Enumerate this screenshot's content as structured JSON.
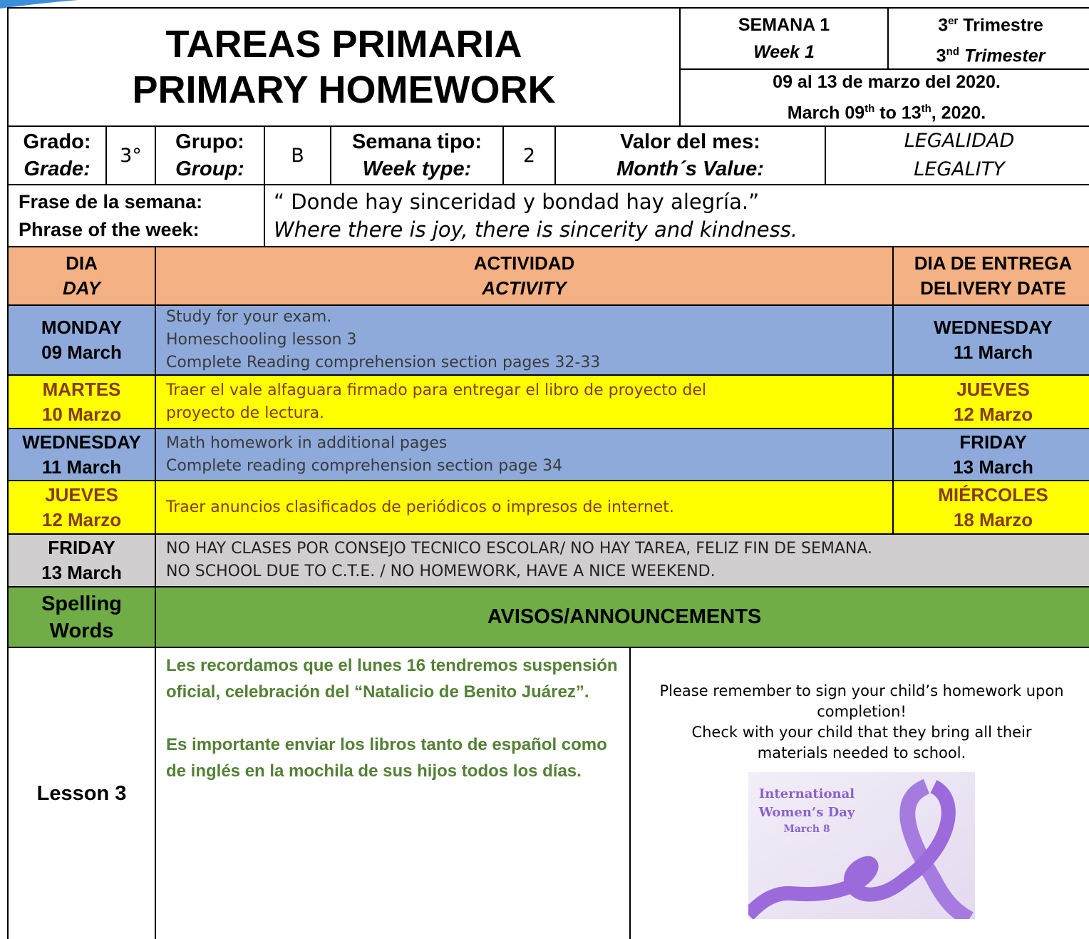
{
  "header": {
    "title_es": "TAREAS PRIMARIA",
    "title_en": "PRIMARY HOMEWORK",
    "week_es": "SEMANA 1",
    "week_en": "Week  1",
    "trimester_es": {
      "number": "3",
      "suffix": "er",
      "text": "Trimestre"
    },
    "trimester_en": {
      "number": "3",
      "suffix": "nd",
      "text": "Trimester"
    },
    "dates_es": "09 al 13 de marzo del 2020.",
    "dates_en": {
      "part1": "March 09",
      "sup1": "th",
      "part2": " to 13",
      "sup2": "th",
      "part3": ", 2020."
    }
  },
  "info": {
    "grade_label_es": "Grado:",
    "grade_label_en": "Grade:",
    "grade": "3°",
    "group_label_es": "Grupo:",
    "group_label_en": "Group:",
    "group": "B",
    "week_type_label_es": "Semana tipo:",
    "week_type_label_en": "Week type:",
    "week_type": "2",
    "value_label_es": "Valor del mes:",
    "value_label_en": "Month´s Value:",
    "value_es": "LEGALIDAD",
    "value_en": "LEGALITY",
    "phrase_label_es": "Frase de la semana:",
    "phrase_label_en": "Phrase of the week:",
    "phrase_es": "“ Donde hay sinceridad y bondad hay alegría.”",
    "phrase_en": "Where there is joy, there is sincerity and kindness."
  },
  "table": {
    "headers": [
      [
        "DIA",
        "DAY"
      ],
      [
        "ACTIVIDAD",
        "ACTIVITY"
      ],
      [
        "DIA DE ENTREGA",
        "DELIVERY DATE"
      ]
    ],
    "rows": [
      {
        "day": [
          "MONDAY",
          "09 March"
        ],
        "activity": [
          "Study for your exam.",
          "Homeschooling lesson 3",
          "Complete Reading comprehension section pages 32-33"
        ],
        "delivery": [
          "WEDNESDAY",
          "11 March"
        ]
      },
      {
        "day": [
          "MARTES",
          "10 Marzo"
        ],
        "activity": [
          "Traer el vale alfaguara firmado para entregar el libro de proyecto del",
          "proyecto de lectura."
        ],
        "delivery": [
          "JUEVES",
          "12 Marzo"
        ]
      },
      {
        "day": [
          "WEDNESDAY",
          "11 March"
        ],
        "activity": [
          "Math homework in additional pages",
          "Complete reading comprehension section page 34"
        ],
        "delivery": [
          "FRIDAY",
          "13 March"
        ]
      },
      {
        "day": [
          "JUEVES",
          "12 Marzo"
        ],
        "activity": [
          "Traer anuncios clasificados de periódicos o impresos de internet."
        ],
        "delivery": [
          "MIÉRCOLES",
          "18 Marzo"
        ]
      },
      {
        "day": [
          "FRIDAY",
          "13 March"
        ],
        "activity": [
          "NO HAY CLASES POR CONSEJO TECNICO ESCOLAR/ NO HAY TAREA, FELIZ FIN DE SEMANA.",
          "NO SCHOOL DUE TO C.T.E. / NO HOMEWORK, HAVE A NICE WEEKEND."
        ]
      }
    ]
  },
  "announcements": {
    "spelling_label": [
      "Spelling",
      "Words"
    ],
    "title": "AVISOS/ANNOUNCEMENTS",
    "lesson": "Lesson 3",
    "notes_es": [
      "Les recordamos que el lunes 16 tendremos suspensión oficial, celebración del “Natalicio de Benito Juárez”.",
      "Es importante enviar los libros tanto de español como de inglés en la mochila de sus hijos todos los días."
    ],
    "notes_en": [
      "Please remember to sign your child’s homework upon completion!",
      "Check with your child that they bring all their materials needed to school."
    ],
    "image": {
      "lines": [
        "International",
        "Women’s Day",
        "March 8"
      ]
    }
  }
}
